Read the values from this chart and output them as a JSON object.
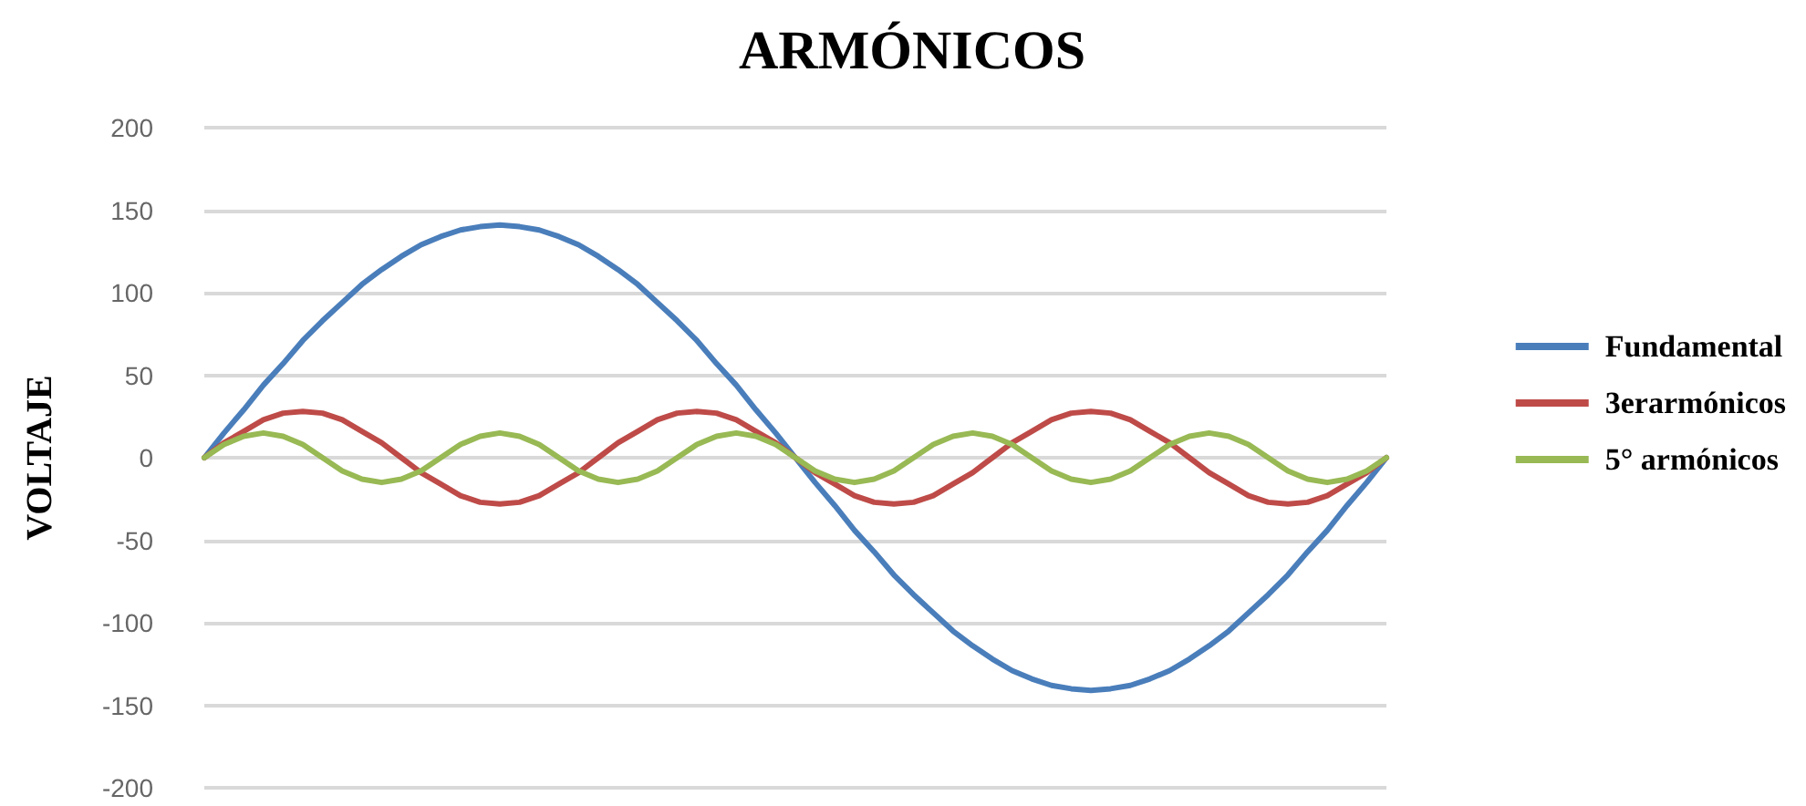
{
  "chart_data": {
    "type": "line",
    "title": "ARMÓNICOS",
    "ylabel": "VOLTAJE",
    "categories": [
      null,
      null,
      null,
      null,
      null,
      null,
      null,
      null,
      null,
      null,
      null,
      null,
      null,
      null,
      null,
      null,
      null,
      null,
      null,
      null,
      null,
      null,
      null,
      null,
      null,
      null,
      null,
      null,
      null,
      null,
      null,
      null,
      null,
      null,
      null,
      null,
      null,
      null,
      null,
      null,
      null,
      null,
      null,
      null,
      null,
      null,
      null,
      null,
      null,
      null,
      null,
      null,
      null,
      null,
      null,
      null,
      null,
      null,
      null,
      null,
      null
    ],
    "series": [
      {
        "name": "Fundamental",
        "color": "#4a7ebb",
        "values": [
          0,
          15,
          29,
          44,
          57,
          71,
          83,
          94,
          105,
          114,
          122,
          129,
          134,
          138,
          140,
          141,
          140,
          138,
          134,
          129,
          122,
          114,
          105,
          94,
          83,
          71,
          57,
          44,
          29,
          15,
          0,
          -15,
          -29,
          -44,
          -57,
          -71,
          -83,
          -94,
          -105,
          -114,
          -122,
          -129,
          -134,
          -138,
          -140,
          -141,
          -140,
          -138,
          -134,
          -129,
          -122,
          -114,
          -105,
          -94,
          -83,
          -71,
          -57,
          -44,
          -29,
          -15,
          0
        ]
      },
      {
        "name": "3erarmónicos",
        "color": "#be4b48",
        "values": [
          0,
          9,
          16,
          23,
          27,
          28,
          27,
          23,
          16,
          9,
          0,
          -9,
          -16,
          -23,
          -27,
          -28,
          -27,
          -23,
          -16,
          -9,
          0,
          9,
          16,
          23,
          27,
          28,
          27,
          23,
          16,
          9,
          0,
          -9,
          -16,
          -23,
          -27,
          -28,
          -27,
          -23,
          -16,
          -9,
          0,
          9,
          16,
          23,
          27,
          28,
          27,
          23,
          16,
          9,
          0,
          -9,
          -16,
          -23,
          -27,
          -28,
          -27,
          -23,
          -16,
          -9,
          0
        ]
      },
      {
        "name": "5° armónicos",
        "color": "#98b954",
        "values": [
          0,
          8,
          13,
          15,
          13,
          8,
          0,
          -8,
          -13,
          -15,
          -13,
          -8,
          0,
          8,
          13,
          15,
          13,
          8,
          0,
          -8,
          -13,
          -15,
          -13,
          -8,
          0,
          8,
          13,
          15,
          13,
          8,
          0,
          -8,
          -13,
          -15,
          -13,
          -8,
          0,
          8,
          13,
          15,
          13,
          8,
          0,
          -8,
          -13,
          -15,
          -13,
          -8,
          0,
          8,
          13,
          15,
          13,
          8,
          0,
          -8,
          -13,
          -15,
          -13,
          -8,
          0
        ]
      }
    ],
    "ylim": [
      -200,
      200
    ],
    "yticks": [
      -200,
      -150,
      -100,
      -50,
      0,
      50,
      100,
      150,
      200
    ],
    "grid": "y",
    "legend": "right",
    "marker": "none",
    "line_style": "solid",
    "tick_labels": "y"
  }
}
